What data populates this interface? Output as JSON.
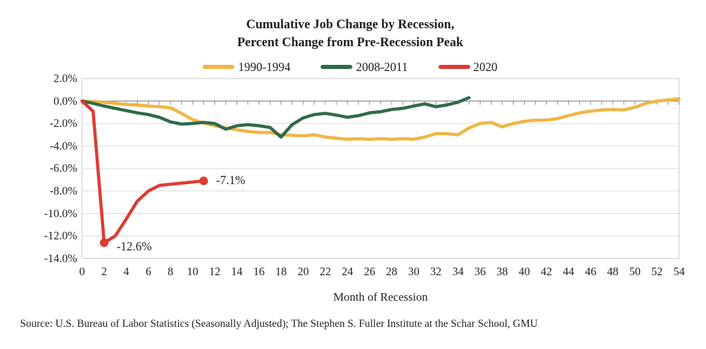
{
  "title": {
    "line1": "Cumulative Job Change by Recession,",
    "line2": "Percent Change from Pre-Recession Peak"
  },
  "legend": [
    {
      "label": "1990-1994",
      "color": "#F0B543"
    },
    {
      "label": "2008-2011",
      "color": "#2F6A4B"
    },
    {
      "label": "2020",
      "color": "#DE3B32"
    }
  ],
  "chart_data": {
    "type": "line",
    "title": "Cumulative Job Change by Recession, Percent Change from Pre-Recession Peak",
    "xlabel": "Month of Recession",
    "ylabel": "",
    "x_ticks": [
      0,
      2,
      4,
      6,
      8,
      10,
      12,
      14,
      16,
      18,
      20,
      22,
      24,
      26,
      28,
      30,
      32,
      34,
      36,
      38,
      40,
      42,
      44,
      46,
      48,
      50,
      52,
      54
    ],
    "y_ticks": [
      "2.0%",
      "0.0%",
      "-2.0%",
      "-4.0%",
      "-6.0%",
      "-8.0%",
      "-10.0%",
      "-12.0%",
      "-14.0%"
    ],
    "ylim": [
      -14,
      2
    ],
    "xlim": [
      0,
      54
    ],
    "y_step": 2,
    "grid": true,
    "legend_position": "top",
    "series": [
      {
        "name": "1990-1994",
        "color": "#F0B543",
        "x_start": 0,
        "values": [
          0.0,
          -0.05,
          -0.1,
          -0.2,
          -0.3,
          -0.35,
          -0.45,
          -0.5,
          -0.6,
          -1.1,
          -1.65,
          -1.95,
          -2.2,
          -2.4,
          -2.55,
          -2.7,
          -2.8,
          -2.8,
          -3.0,
          -3.05,
          -3.1,
          -3.0,
          -3.2,
          -3.3,
          -3.4,
          -3.35,
          -3.4,
          -3.35,
          -3.4,
          -3.35,
          -3.4,
          -3.2,
          -2.9,
          -2.9,
          -3.0,
          -2.4,
          -2.0,
          -1.9,
          -2.3,
          -2.0,
          -1.8,
          -1.7,
          -1.7,
          -1.55,
          -1.3,
          -1.05,
          -0.9,
          -0.8,
          -0.75,
          -0.8,
          -0.55,
          -0.2,
          0.0,
          0.1,
          0.2
        ]
      },
      {
        "name": "2008-2011",
        "color": "#2F6A4B",
        "x_start": 0,
        "values": [
          0.0,
          -0.2,
          -0.45,
          -0.65,
          -0.85,
          -1.05,
          -1.2,
          -1.45,
          -1.85,
          -2.05,
          -2.0,
          -1.9,
          -2.0,
          -2.5,
          -2.2,
          -2.1,
          -2.2,
          -2.35,
          -3.2,
          -2.1,
          -1.5,
          -1.2,
          -1.1,
          -1.25,
          -1.45,
          -1.3,
          -1.05,
          -0.95,
          -0.75,
          -0.65,
          -0.45,
          -0.25,
          -0.5,
          -0.35,
          -0.1,
          0.3
        ]
      },
      {
        "name": "2020",
        "color": "#DE3B32",
        "x_start": 0,
        "values": [
          0.0,
          -0.9,
          -12.6,
          -12.0,
          -10.5,
          -8.9,
          -8.0,
          -7.5,
          -7.4,
          -7.3,
          -7.2,
          -7.1
        ],
        "markers": [
          {
            "month": 2,
            "value": -12.6,
            "label": "-12.6%"
          },
          {
            "month": 11,
            "value": -7.1,
            "label": "-7.1%"
          }
        ]
      }
    ]
  },
  "source": "Source: U.S. Bureau of Labor Statistics (Seasonally Adjusted); The Stephen S. Fuller Institute at the Schar School, GMU",
  "colors": {
    "text": "#231F20",
    "gridline": "#D9D9D9",
    "plot_border": "#D0D0D0",
    "zero_axis": "#8C8C8C",
    "background": "#FFFFFF"
  }
}
